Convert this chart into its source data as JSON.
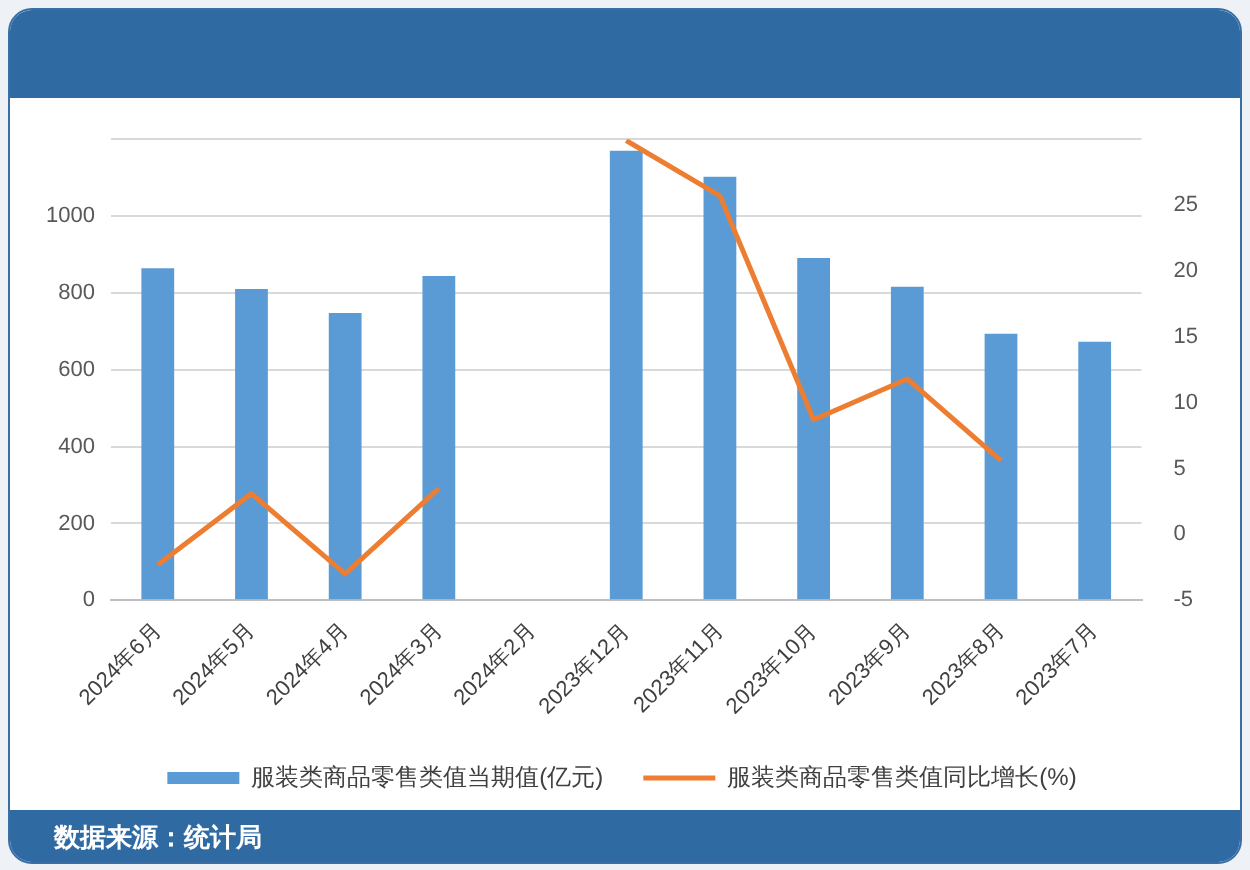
{
  "chart_data": {
    "type": "bar",
    "categories": [
      "2024年6月",
      "2024年5月",
      "2024年4月",
      "2024年3月",
      "2024年2月",
      "2023年12月",
      "2023年11月",
      "2023年10月",
      "2023年9月",
      "2023年8月",
      "2023年7月"
    ],
    "series": [
      {
        "name": "服装类商品零售类值当期值(亿元)",
        "color": "#5b9bd5",
        "values": [
          864,
          810,
          748,
          844,
          null,
          1170,
          1102,
          891,
          816,
          694,
          673
        ]
      },
      {
        "name": "服装类商品零售类值同比增长(%)",
        "type": "line",
        "axis": "y2",
        "color": "#ed7d31",
        "values": [
          -2.3,
          3.1,
          -3.0,
          3.5,
          null,
          29.9,
          25.7,
          8.7,
          11.8,
          5.6,
          null
        ]
      }
    ],
    "ylim": [
      0,
      1200
    ],
    "yticks": [
      0,
      200,
      400,
      600,
      800,
      1000,
      {
        "value": 1200,
        "label": null
      }
    ],
    "y2lim": [
      -5,
      30
    ],
    "y2ticks": [
      -5,
      0,
      5,
      10,
      15,
      20,
      25
    ],
    "grid": "y",
    "legend": "bottom",
    "marker": "none",
    "annotations": [
      "数据来源：统计局"
    ]
  }
}
